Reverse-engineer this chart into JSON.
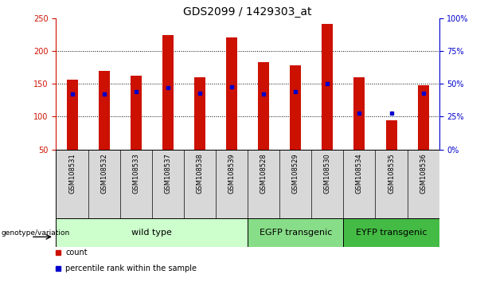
{
  "title": "GDS2099 / 1429303_at",
  "samples": [
    "GSM108531",
    "GSM108532",
    "GSM108533",
    "GSM108537",
    "GSM108538",
    "GSM108539",
    "GSM108528",
    "GSM108529",
    "GSM108530",
    "GSM108534",
    "GSM108535",
    "GSM108536"
  ],
  "counts": [
    157,
    170,
    163,
    224,
    160,
    221,
    183,
    178,
    242,
    160,
    95,
    148
  ],
  "percentiles": [
    42,
    42,
    44,
    47,
    43,
    48,
    42,
    44,
    50,
    28,
    28,
    43
  ],
  "ylim_left": [
    50,
    250
  ],
  "ylim_right": [
    0,
    100
  ],
  "yticks_left": [
    50,
    100,
    150,
    200,
    250
  ],
  "yticks_right": [
    0,
    25,
    50,
    75,
    100
  ],
  "ytick_right_labels": [
    "0%",
    "25%",
    "50%",
    "75%",
    "100%"
  ],
  "hgrid_values": [
    100,
    150,
    200
  ],
  "groups": [
    {
      "label": "wild type",
      "start": 0,
      "end": 6,
      "color": "#ccffcc"
    },
    {
      "label": "EGFP transgenic",
      "start": 6,
      "end": 9,
      "color": "#88dd88"
    },
    {
      "label": "EYFP transgenic",
      "start": 9,
      "end": 12,
      "color": "#44bb44"
    }
  ],
  "bar_color": "#cc1100",
  "dot_color": "#0000cc",
  "bar_width": 0.35,
  "base_value": 50,
  "left_axis_color": "#cc1100",
  "right_axis_color": "#0000cc",
  "sample_bg_color": "#d8d8d8",
  "legend_items": [
    {
      "label": "count",
      "color": "#cc1100"
    },
    {
      "label": "percentile rank within the sample",
      "color": "#0000cc"
    }
  ],
  "genotype_label": "genotype/variation",
  "title_fontsize": 10,
  "tick_fontsize": 7,
  "sample_fontsize": 6,
  "group_fontsize": 8,
  "legend_fontsize": 7
}
